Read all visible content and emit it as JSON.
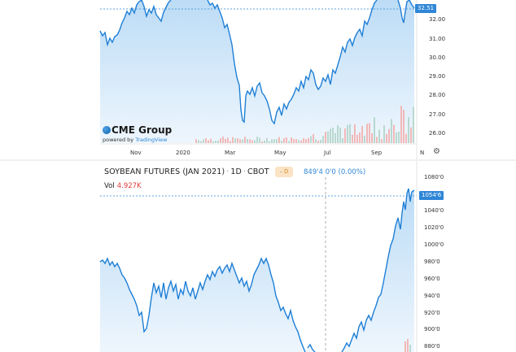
{
  "top_chart": {
    "price_axis": [
      "32.00",
      "31.00",
      "30.00",
      "29.00",
      "28.00",
      "27.00",
      "26.00"
    ],
    "last_price": "32.51",
    "x_axis": [
      "Nov",
      "2020",
      "Mar",
      "May",
      "Jul",
      "Sep",
      "N"
    ],
    "logo": {
      "brand": "CME Group",
      "powered_prefix": "powered by ",
      "powered_brand": "TradingView"
    },
    "settings_icon": "gear-icon"
  },
  "bottom_chart": {
    "title": "SOYBEAN FUTURES (JAN 2021)",
    "interval": "1D",
    "exchange": "CBOT",
    "interval_badge": "D",
    "last_value": "849'4  0'0 (0.00%)",
    "vol_label": "Vol",
    "vol_value": "4.927K",
    "price_axis": [
      "1080'0",
      "1040'0",
      "1020'0",
      "1000'0",
      "980'0",
      "960'0",
      "940'0",
      "920'0",
      "900'0",
      "880'0"
    ],
    "last_price": "1054'6"
  },
  "colors": {
    "line": "#1f7fd6",
    "fill": "#cfe5f8",
    "up_vol": "#b9d8cf",
    "down_vol": "#f2b8b8",
    "tag": "#2f86d6"
  }
}
